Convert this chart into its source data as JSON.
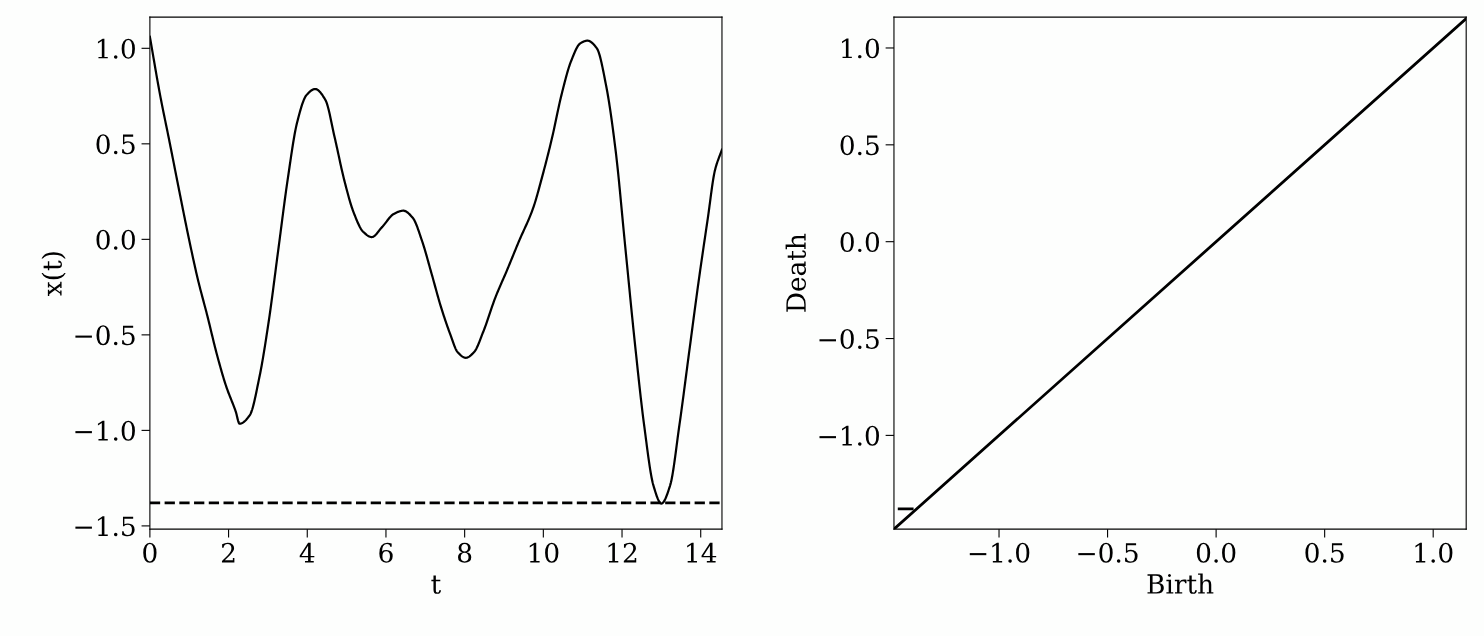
{
  "chart_data": [
    {
      "type": "line",
      "xlabel": "t",
      "ylabel": "x(t)",
      "xlim": [
        0,
        14.54
      ],
      "ylim": [
        -1.517,
        1.163
      ],
      "xticks": [
        0,
        2,
        4,
        6,
        8,
        10,
        12,
        14
      ],
      "yticks": [
        {
          "value": -1.5,
          "label": "−1.5"
        },
        {
          "value": -1.0,
          "label": "−1.0"
        },
        {
          "value": -0.5,
          "label": "−0.5"
        },
        {
          "value": 0,
          "label": "0.0"
        },
        {
          "value": 0.5,
          "label": "0.5"
        },
        {
          "value": 1,
          "label": "1.0"
        }
      ],
      "series": [
        {
          "color": "#000000",
          "x": [
            0,
            0.26,
            0.5,
            0.74,
            0.98,
            1.22,
            1.46,
            1.7,
            1.94,
            2.18,
            2.28,
            2.54,
            2.78,
            3.02,
            3.26,
            3.5,
            3.74,
            3.98,
            4.2,
            4.46,
            4.7,
            4.94,
            5.18,
            5.42,
            5.64,
            5.9,
            6.2,
            6.44,
            6.68,
            6.92,
            7.16,
            7.4,
            7.64,
            7.82,
            8.03,
            8.24,
            8.48,
            8.78,
            9.08,
            9.38,
            9.74,
            9.98,
            10.22,
            10.46,
            10.7,
            10.94,
            11.12,
            11.36,
            11.6,
            11.84,
            12.08,
            12.32,
            12.56,
            12.8,
            13.0,
            13.22,
            13.46,
            13.7,
            13.94,
            14.18,
            14.36,
            14.54
          ],
          "values": [
            1.06,
            0.755,
            0.51,
            0.26,
            0.015,
            -0.21,
            -0.4,
            -0.6,
            -0.77,
            -0.9,
            -0.965,
            -0.92,
            -0.725,
            -0.43,
            -0.06,
            0.31,
            0.61,
            0.755,
            0.787,
            0.73,
            0.53,
            0.31,
            0.14,
            0.04,
            0.012,
            0.064,
            0.133,
            0.15,
            0.113,
            -0.01,
            -0.18,
            -0.355,
            -0.5,
            -0.59,
            -0.62,
            -0.59,
            -0.48,
            -0.305,
            -0.16,
            -0.01,
            0.163,
            0.335,
            0.53,
            0.755,
            0.93,
            1.026,
            1.04,
            1.0,
            0.8,
            0.46,
            -0.035,
            -0.53,
            -0.97,
            -1.29,
            -1.383,
            -1.29,
            -0.97,
            -0.6,
            -0.23,
            0.11,
            0.36,
            0.47
          ]
        }
      ],
      "ref_lines": [
        {
          "axis": "y",
          "value": -1.38,
          "color": "#000000",
          "line_style": "dashed"
        }
      ],
      "grid": false,
      "legend": false
    },
    {
      "type": "line",
      "xlabel": "Birth",
      "ylabel": "Death",
      "xlim": [
        -1.484,
        1.152
      ],
      "ylim": [
        -1.484,
        1.159
      ],
      "xticks": [
        {
          "value": -1.0,
          "label": "−1.0"
        },
        {
          "value": -0.5,
          "label": "−0.5"
        },
        {
          "value": 0,
          "label": "0.0"
        },
        {
          "value": 0.5,
          "label": "0.5"
        },
        {
          "value": 1,
          "label": "1.0"
        }
      ],
      "yticks": [
        {
          "value": -1.0,
          "label": "−1.0"
        },
        {
          "value": -0.5,
          "label": "−0.5"
        },
        {
          "value": 0,
          "label": "0.0"
        },
        {
          "value": 0.5,
          "label": "0.5"
        },
        {
          "value": 1,
          "label": "1.0"
        }
      ],
      "series": [
        {
          "color": "#000000",
          "x": [
            -1.484,
            1.152
          ],
          "values": [
            -1.484,
            1.152
          ]
        },
        {
          "color": "#000000",
          "x": [
            -1.46,
            -1.4
          ],
          "values": [
            -1.379,
            -1.379
          ]
        }
      ],
      "grid": false,
      "legend": false
    }
  ]
}
